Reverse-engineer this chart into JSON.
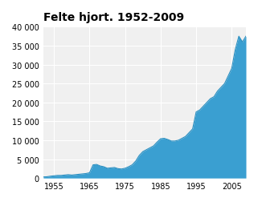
{
  "title": "Felte hjort. 1952-2009",
  "xlim": [
    1952,
    2009
  ],
  "ylim": [
    0,
    40000
  ],
  "xticks": [
    1955,
    1965,
    1975,
    1985,
    1995,
    2005
  ],
  "yticks": [
    0,
    5000,
    10000,
    15000,
    20000,
    25000,
    30000,
    35000,
    40000
  ],
  "fill_color": "#3a9fd1",
  "line_color": "#2a8fc1",
  "background_color": "#ffffff",
  "plot_bg_color": "#f0f0f0",
  "title_fontsize": 10,
  "years": [
    1952,
    1953,
    1954,
    1955,
    1956,
    1957,
    1958,
    1959,
    1960,
    1961,
    1962,
    1963,
    1964,
    1965,
    1966,
    1967,
    1968,
    1969,
    1970,
    1971,
    1972,
    1973,
    1974,
    1975,
    1976,
    1977,
    1978,
    1979,
    1980,
    1981,
    1982,
    1983,
    1984,
    1985,
    1986,
    1987,
    1988,
    1989,
    1990,
    1991,
    1992,
    1993,
    1994,
    1995,
    1996,
    1997,
    1998,
    1999,
    2000,
    2001,
    2002,
    2003,
    2004,
    2005,
    2006,
    2007,
    2008,
    2009
  ],
  "values": [
    300,
    350,
    500,
    600,
    700,
    700,
    800,
    900,
    800,
    900,
    1000,
    1100,
    1200,
    1400,
    3500,
    3600,
    3200,
    3000,
    2600,
    2700,
    2800,
    2500,
    2400,
    2600,
    3000,
    3500,
    4500,
    6000,
    7000,
    7500,
    8000,
    8500,
    9500,
    10400,
    10500,
    10200,
    9800,
    9800,
    10000,
    10500,
    11000,
    12000,
    13000,
    17500,
    18000,
    19000,
    20000,
    21000,
    21500,
    23000,
    24000,
    25000,
    27000,
    29000,
    34000,
    37500,
    36000,
    37500
  ]
}
